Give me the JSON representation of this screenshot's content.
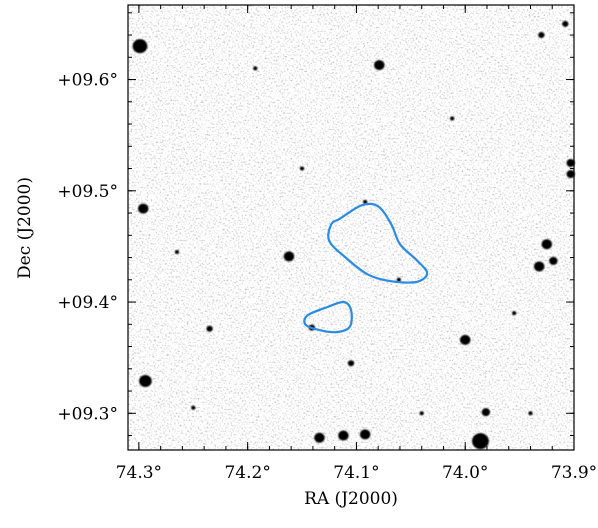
{
  "figure": {
    "x_axis": {
      "label": "RA (J2000)",
      "ticks": [
        {
          "value": 74.3,
          "label": "74.3°"
        },
        {
          "value": 74.2,
          "label": "74.2°"
        },
        {
          "value": 74.1,
          "label": "74.1°"
        },
        {
          "value": 74.0,
          "label": "74.0°"
        },
        {
          "value": 73.9,
          "label": "73.9°"
        }
      ],
      "range": [
        74.31,
        73.9
      ],
      "inverted": true
    },
    "y_axis": {
      "label": "Dec (J2000)",
      "ticks": [
        {
          "value": 9.6,
          "label": "+09.6°"
        },
        {
          "value": 9.5,
          "label": "+09.5°"
        },
        {
          "value": 9.4,
          "label": "+09.4°"
        },
        {
          "value": 9.3,
          "label": "+09.3°"
        }
      ],
      "range": [
        9.267,
        9.667
      ]
    },
    "image": {
      "colormap": "inverted-gray",
      "background": "#ffffff"
    },
    "contours": {
      "color": "#2a8be2",
      "items": [
        {
          "name": "contour-large",
          "points": [
            [
              74.115,
              9.475
            ],
            [
              74.095,
              9.487
            ],
            [
              74.08,
              9.486
            ],
            [
              74.068,
              9.47
            ],
            [
              74.06,
              9.452
            ],
            [
              74.045,
              9.438
            ],
            [
              74.035,
              9.426
            ],
            [
              74.045,
              9.418
            ],
            [
              74.07,
              9.419
            ],
            [
              74.09,
              9.425
            ],
            [
              74.11,
              9.44
            ],
            [
              74.125,
              9.455
            ],
            [
              74.123,
              9.47
            ]
          ]
        },
        {
          "name": "contour-small",
          "points": [
            [
              74.145,
              9.388
            ],
            [
              74.128,
              9.395
            ],
            [
              74.112,
              9.4
            ],
            [
              74.105,
              9.393
            ],
            [
              74.106,
              9.378
            ],
            [
              74.118,
              9.373
            ],
            [
              74.135,
              9.375
            ],
            [
              74.147,
              9.38
            ]
          ]
        }
      ]
    },
    "sources": [
      {
        "ra": 74.299,
        "dec": 9.63,
        "size": 7
      },
      {
        "ra": 74.296,
        "dec": 9.484,
        "size": 5
      },
      {
        "ra": 74.294,
        "dec": 9.329,
        "size": 6
      },
      {
        "ra": 74.235,
        "dec": 9.376,
        "size": 3
      },
      {
        "ra": 74.162,
        "dec": 9.441,
        "size": 5
      },
      {
        "ra": 74.141,
        "dec": 9.377,
        "size": 3
      },
      {
        "ra": 74.134,
        "dec": 9.278,
        "size": 5
      },
      {
        "ra": 74.112,
        "dec": 9.28,
        "size": 5
      },
      {
        "ra": 74.092,
        "dec": 9.281,
        "size": 5
      },
      {
        "ra": 74.105,
        "dec": 9.345,
        "size": 3
      },
      {
        "ra": 74.079,
        "dec": 9.613,
        "size": 5
      },
      {
        "ra": 74.061,
        "dec": 9.42,
        "size": 2
      },
      {
        "ra": 74.0,
        "dec": 9.366,
        "size": 5
      },
      {
        "ra": 73.986,
        "dec": 9.275,
        "size": 8
      },
      {
        "ra": 73.981,
        "dec": 9.301,
        "size": 4
      },
      {
        "ra": 73.925,
        "dec": 9.452,
        "size": 5
      },
      {
        "ra": 73.932,
        "dec": 9.432,
        "size": 5
      },
      {
        "ra": 73.919,
        "dec": 9.437,
        "size": 4
      },
      {
        "ra": 73.903,
        "dec": 9.525,
        "size": 4
      },
      {
        "ra": 73.903,
        "dec": 9.515,
        "size": 4
      },
      {
        "ra": 73.93,
        "dec": 9.64,
        "size": 3
      },
      {
        "ra": 73.908,
        "dec": 9.65,
        "size": 3
      },
      {
        "ra": 74.193,
        "dec": 9.61,
        "size": 2
      },
      {
        "ra": 74.265,
        "dec": 9.445,
        "size": 2
      },
      {
        "ra": 74.04,
        "dec": 9.3,
        "size": 2
      },
      {
        "ra": 74.012,
        "dec": 9.565,
        "size": 2
      },
      {
        "ra": 74.25,
        "dec": 9.305,
        "size": 2
      },
      {
        "ra": 73.955,
        "dec": 9.39,
        "size": 2
      },
      {
        "ra": 74.15,
        "dec": 9.52,
        "size": 2
      },
      {
        "ra": 73.94,
        "dec": 9.3,
        "size": 2
      },
      {
        "ra": 74.092,
        "dec": 9.49,
        "size": 2
      }
    ]
  }
}
